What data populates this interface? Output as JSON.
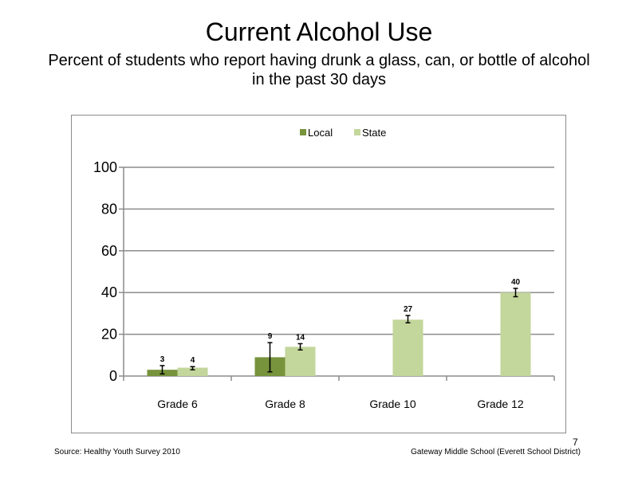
{
  "slide": {
    "title": "Current Alcohol Use",
    "subtitle": "Percent of students who report having drunk a glass, can, or bottle of alcohol in the past 30 days",
    "source": "Source: Healthy Youth Survey 2010",
    "school": "Gateway Middle  School (Everett School District)",
    "page_number": "7"
  },
  "chart_data": {
    "type": "bar",
    "title": "",
    "xlabel": "",
    "ylabel": "",
    "categories": [
      "Grade 6",
      "Grade 8",
      "Grade 10",
      "Grade 12"
    ],
    "ylim": [
      0,
      100
    ],
    "yticks": [
      0,
      20,
      40,
      60,
      80,
      100
    ],
    "grid": true,
    "legend_position": "top",
    "series": [
      {
        "name": "Local",
        "color": "#77933c",
        "values": [
          3,
          9,
          null,
          null
        ],
        "labels": [
          "3",
          "9",
          "",
          ""
        ],
        "error_low": [
          1,
          2,
          null,
          null
        ],
        "error_high": [
          5,
          16,
          null,
          null
        ]
      },
      {
        "name": "State",
        "color": "#c3d69b",
        "values": [
          4,
          14,
          27,
          40
        ],
        "labels": [
          "4",
          "14",
          "27",
          "40"
        ],
        "error_low": [
          3,
          12.5,
          25.5,
          38
        ],
        "error_high": [
          4.5,
          15.5,
          29,
          42
        ]
      }
    ]
  }
}
